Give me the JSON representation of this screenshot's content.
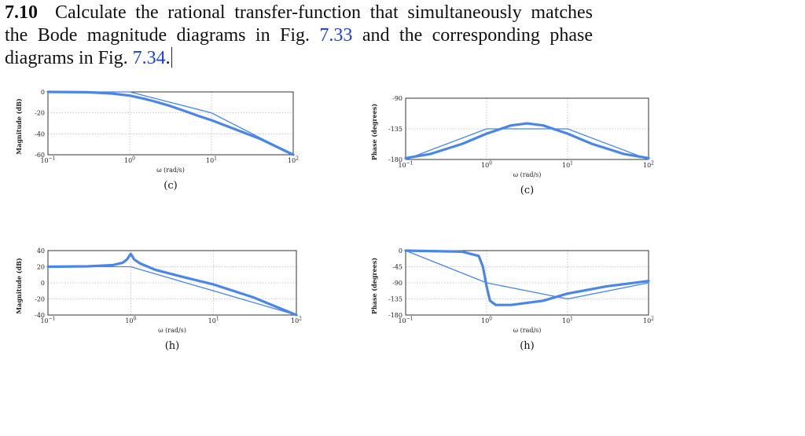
{
  "problem": {
    "number": "7.10",
    "text_before": "Calculate the rational transfer-function that simultaneously matches the Bode magnitude diagrams in Fig. ",
    "ref1": "7.33",
    "text_middle": " and the corresponding phase diagrams in Fig. ",
    "ref2": "7.34",
    "text_end": "."
  },
  "colors": {
    "curve": "#4a86e8",
    "frame": "#333333",
    "grid": "#bfbfbf"
  },
  "chart_data": [
    {
      "id": "c-magnitude",
      "type": "line",
      "caption": "(c)",
      "xlabel": "ω (rad/s)",
      "ylabel": "Magnitude (dB)",
      "xscale": "log",
      "xlim": [
        0.1,
        100
      ],
      "ylim": [
        -60,
        0
      ],
      "yticks": [
        0,
        -20,
        -40,
        -60
      ],
      "xticks": [
        0.1,
        1,
        10,
        100
      ],
      "xtick_labels": [
        {
          "base": "10",
          "exp": "−1"
        },
        {
          "base": "10",
          "exp": "0"
        },
        {
          "base": "10",
          "exp": "1"
        },
        {
          "base": "10",
          "exp": "2"
        }
      ],
      "ytick_labels": [
        "0",
        "-20",
        "-40",
        "-60"
      ],
      "series": [
        {
          "role": "exact",
          "x": [
            0.1,
            0.3,
            0.6,
            1,
            1.5,
            2,
            3,
            5,
            7,
            10,
            20,
            40,
            100
          ],
          "y": [
            0,
            -0.3,
            -1.5,
            -3.5,
            -6.5,
            -9,
            -13,
            -19,
            -23,
            -27,
            -36,
            -45,
            -60
          ]
        },
        {
          "role": "asymptote",
          "x": [
            0.1,
            1,
            10,
            100
          ],
          "y": [
            0,
            0,
            -20,
            -60
          ]
        }
      ]
    },
    {
      "id": "c-phase",
      "type": "line",
      "caption": "(c)",
      "xlabel": "ω (rad/s)",
      "ylabel": "Phase (degrees)",
      "xscale": "log",
      "xlim": [
        0.1,
        100
      ],
      "ylim": [
        -180,
        -90
      ],
      "yticks": [
        -90,
        -135,
        -180
      ],
      "xticks": [
        0.1,
        1,
        10,
        100
      ],
      "xtick_labels": [
        {
          "base": "10",
          "exp": "−1"
        },
        {
          "base": "10",
          "exp": "0"
        },
        {
          "base": "10",
          "exp": "1"
        },
        {
          "base": "10",
          "exp": "2"
        }
      ],
      "ytick_labels": [
        "-90",
        "-135",
        "-180"
      ],
      "series": [
        {
          "role": "exact",
          "x": [
            0.1,
            0.2,
            0.5,
            1,
            2,
            3.16,
            5,
            10,
            20,
            50,
            100
          ],
          "y": [
            -178,
            -172,
            -157,
            -142,
            -130,
            -127,
            -130,
            -142,
            -157,
            -172,
            -178
          ]
        },
        {
          "role": "asymptote",
          "x": [
            0.1,
            1,
            10,
            100
          ],
          "y": [
            -180,
            -135,
            -135,
            -180
          ]
        }
      ]
    },
    {
      "id": "h-magnitude",
      "type": "line",
      "caption": "(h)",
      "xlabel": "ω (rad/s)",
      "ylabel": "Magnitude (dB)",
      "xscale": "log",
      "xlim": [
        0.1,
        100
      ],
      "ylim": [
        -40,
        40
      ],
      "yticks": [
        40,
        20,
        0,
        -20,
        -40
      ],
      "xticks": [
        0.1,
        1,
        10,
        100
      ],
      "xtick_labels": [
        {
          "base": "10",
          "exp": "−1"
        },
        {
          "base": "10",
          "exp": "0"
        },
        {
          "base": "10",
          "exp": "1"
        },
        {
          "base": "10",
          "exp": "2"
        }
      ],
      "ytick_labels": [
        "40",
        "20",
        "0",
        "-20",
        "-40"
      ],
      "series": [
        {
          "role": "exact",
          "x": [
            0.1,
            0.3,
            0.6,
            0.8,
            0.9,
            1,
            1.1,
            1.3,
            2,
            4,
            10,
            30,
            100
          ],
          "y": [
            20,
            20.5,
            22,
            25,
            29,
            36,
            29,
            24,
            16,
            8,
            -2,
            -18,
            -40
          ]
        },
        {
          "role": "asymptote",
          "x": [
            0.1,
            1,
            100
          ],
          "y": [
            20,
            20,
            -40
          ]
        }
      ]
    },
    {
      "id": "h-phase",
      "type": "line",
      "caption": "(h)",
      "xlabel": "ω (rad/s)",
      "ylabel": "Phase (degrees)",
      "xscale": "log",
      "xlim": [
        0.1,
        100
      ],
      "ylim": [
        -180,
        0
      ],
      "yticks": [
        0,
        -45,
        -90,
        -135,
        -180
      ],
      "xticks": [
        0.1,
        1,
        10,
        100
      ],
      "xtick_labels": [
        {
          "base": "10",
          "exp": "−1"
        },
        {
          "base": "10",
          "exp": "0"
        },
        {
          "base": "10",
          "exp": "1"
        },
        {
          "base": "10",
          "exp": "2"
        }
      ],
      "ytick_labels": [
        "0",
        "-45",
        "-90",
        "-135",
        "-180"
      ],
      "series": [
        {
          "role": "exact",
          "x": [
            0.1,
            0.5,
            0.8,
            0.9,
            1,
            1.1,
            1.3,
            2,
            5,
            10,
            30,
            100
          ],
          "y": [
            0,
            -3,
            -15,
            -45,
            -100,
            -140,
            -152,
            -152,
            -140,
            -120,
            -100,
            -85
          ]
        },
        {
          "role": "asymptote",
          "x": [
            0.1,
            1,
            10,
            100
          ],
          "y": [
            0,
            -90,
            -135,
            -90
          ]
        }
      ]
    }
  ]
}
